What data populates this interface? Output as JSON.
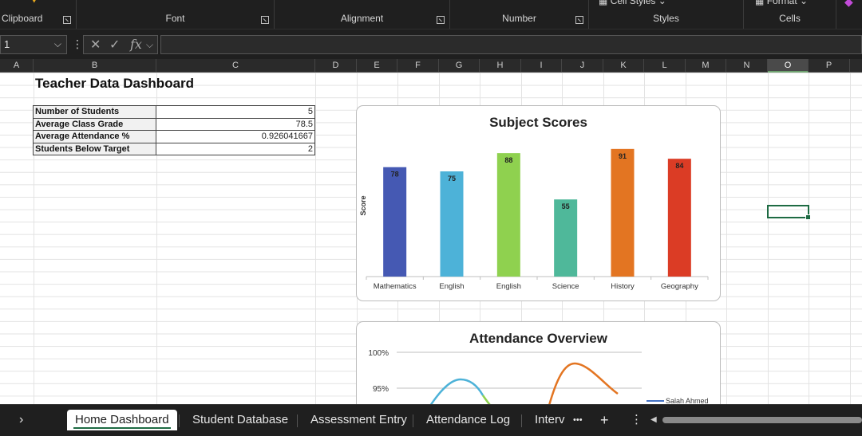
{
  "ribbon": {
    "groups": [
      {
        "label": "Clipboard"
      },
      {
        "label": "Font"
      },
      {
        "label": "Alignment"
      },
      {
        "label": "Number"
      },
      {
        "label": "Styles"
      },
      {
        "label": "Cells"
      }
    ],
    "cell_styles_label": "Cell Styles",
    "format_label": "Format"
  },
  "formula_bar": {
    "name_box": "1",
    "formula": ""
  },
  "columns": [
    "A",
    "B",
    "C",
    "D",
    "E",
    "F",
    "G",
    "H",
    "I",
    "J",
    "K",
    "L",
    "M",
    "N",
    "O",
    "P"
  ],
  "selected_column": "O",
  "sheet": {
    "title": "Teacher Data Dashboard",
    "kpis": [
      {
        "label": "Number of Students",
        "value": "5"
      },
      {
        "label": "Average Class Grade",
        "value": "78.5"
      },
      {
        "label": "Average Attendance %",
        "value": "0.926041667"
      },
      {
        "label": "Students Below Target",
        "value": "2"
      }
    ]
  },
  "chart_data": [
    {
      "type": "bar",
      "title": "Subject Scores",
      "ylabel": "Score",
      "xlabel": "",
      "categories": [
        "Mathematics",
        "English",
        "English",
        "Science",
        "History",
        "Geography"
      ],
      "values": [
        78,
        75,
        88,
        55,
        91,
        84
      ],
      "colors": [
        "#4559b3",
        "#4db2d8",
        "#8fd14f",
        "#4fb89a",
        "#e37522",
        "#db3c25"
      ],
      "ylim": [
        0,
        100
      ],
      "grid": false
    },
    {
      "type": "line",
      "title": "Attendance Overview",
      "y_ticks": [
        "100%",
        "95%"
      ],
      "series": [
        {
          "name": "Salah Ahmed",
          "color": "#4472c4"
        }
      ],
      "colors": [
        "#4db2d8",
        "#8fd14f",
        "#e37522"
      ],
      "legend": "right"
    }
  ],
  "tabs": {
    "nav": "›",
    "items": [
      {
        "label": "Home Dashboard",
        "active": true
      },
      {
        "label": "Student Database"
      },
      {
        "label": "Assessment Entry"
      },
      {
        "label": "Attendance Log"
      },
      {
        "label": "Interv"
      }
    ],
    "more": "•••",
    "add": "+",
    "options": "⋮"
  }
}
